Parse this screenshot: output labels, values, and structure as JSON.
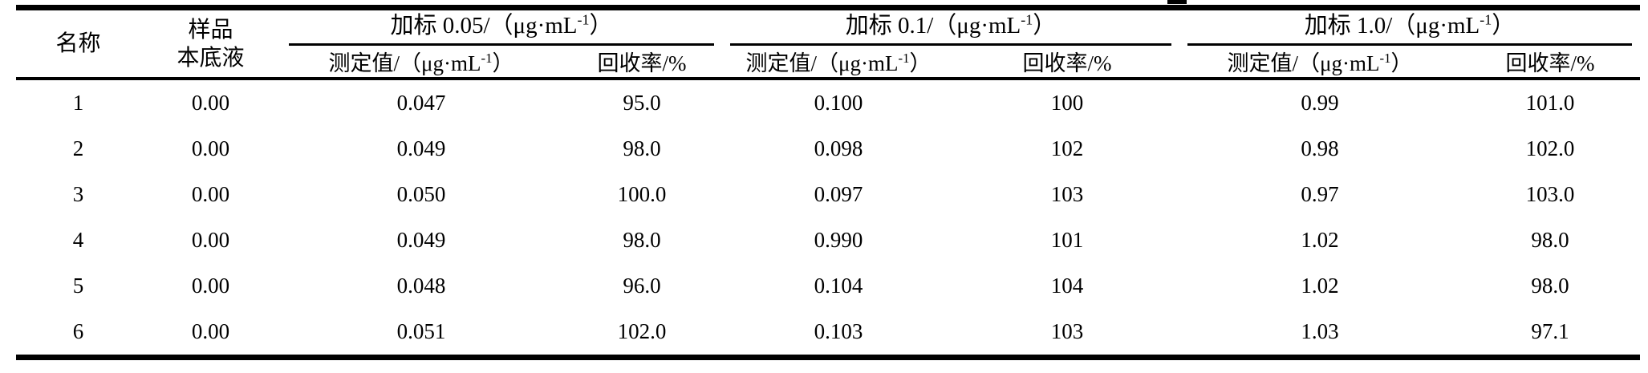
{
  "table": {
    "border_color": "#000000",
    "background_color": "#ffffff",
    "header": {
      "name_label": "名称",
      "sample_blank_label": "样品\n本底液",
      "groups": [
        {
          "title_prefix": "加标 0.05/（μg·mL",
          "title_sup": "-1",
          "title_suffix": "）"
        },
        {
          "title_prefix": "加标 0.1/（μg·mL",
          "title_sup": "-1",
          "title_suffix": "）"
        },
        {
          "title_prefix": "加标 1.0/（μg·mL",
          "title_sup": "-1",
          "title_suffix": "）"
        }
      ],
      "sub_measured_prefix": "测定值/（μg·mL",
      "sub_measured_sup": "-1",
      "sub_measured_suffix": "）",
      "sub_recovery": "回收率/%"
    },
    "rows": [
      {
        "cells": [
          "1",
          "0.00",
          "0.047",
          "95.0",
          "0.100",
          "100",
          "0.99",
          "101.0"
        ]
      },
      {
        "cells": [
          "2",
          "0.00",
          "0.049",
          "98.0",
          "0.098",
          "102",
          "0.98",
          "102.0"
        ]
      },
      {
        "cells": [
          "3",
          "0.00",
          "0.050",
          "100.0",
          "0.097",
          "103",
          "0.97",
          "103.0"
        ]
      },
      {
        "cells": [
          "4",
          "0.00",
          "0.049",
          "98.0",
          "0.990",
          "101",
          "1.02",
          "98.0"
        ]
      },
      {
        "cells": [
          "5",
          "0.00",
          "0.048",
          "96.0",
          "0.104",
          "104",
          "1.02",
          "98.0"
        ]
      },
      {
        "cells": [
          "6",
          "0.00",
          "0.051",
          "102.0",
          "0.103",
          "103",
          "1.03",
          "97.1"
        ]
      }
    ]
  },
  "chart_data": {
    "type": "table",
    "columns": [
      "名称",
      "样品本底液",
      "加标0.05 测定值/（μg·mL⁻¹）",
      "加标0.05 回收率/%",
      "加标0.1 测定值/（μg·mL⁻¹）",
      "加标0.1 回收率/%",
      "加标1.0 测定值/（μg·mL⁻¹）",
      "加标1.0 回收率/%"
    ],
    "rows": [
      [
        "1",
        "0.00",
        "0.047",
        "95.0",
        "0.100",
        "100",
        "0.99",
        "101.0"
      ],
      [
        "2",
        "0.00",
        "0.049",
        "98.0",
        "0.098",
        "102",
        "0.98",
        "102.0"
      ],
      [
        "3",
        "0.00",
        "0.050",
        "100.0",
        "0.097",
        "103",
        "0.97",
        "103.0"
      ],
      [
        "4",
        "0.00",
        "0.049",
        "98.0",
        "0.990",
        "101",
        "1.02",
        "98.0"
      ],
      [
        "5",
        "0.00",
        "0.048",
        "96.0",
        "0.104",
        "104",
        "1.02",
        "98.0"
      ],
      [
        "6",
        "0.00",
        "0.051",
        "102.0",
        "0.103",
        "103",
        "1.03",
        "97.1"
      ]
    ]
  }
}
